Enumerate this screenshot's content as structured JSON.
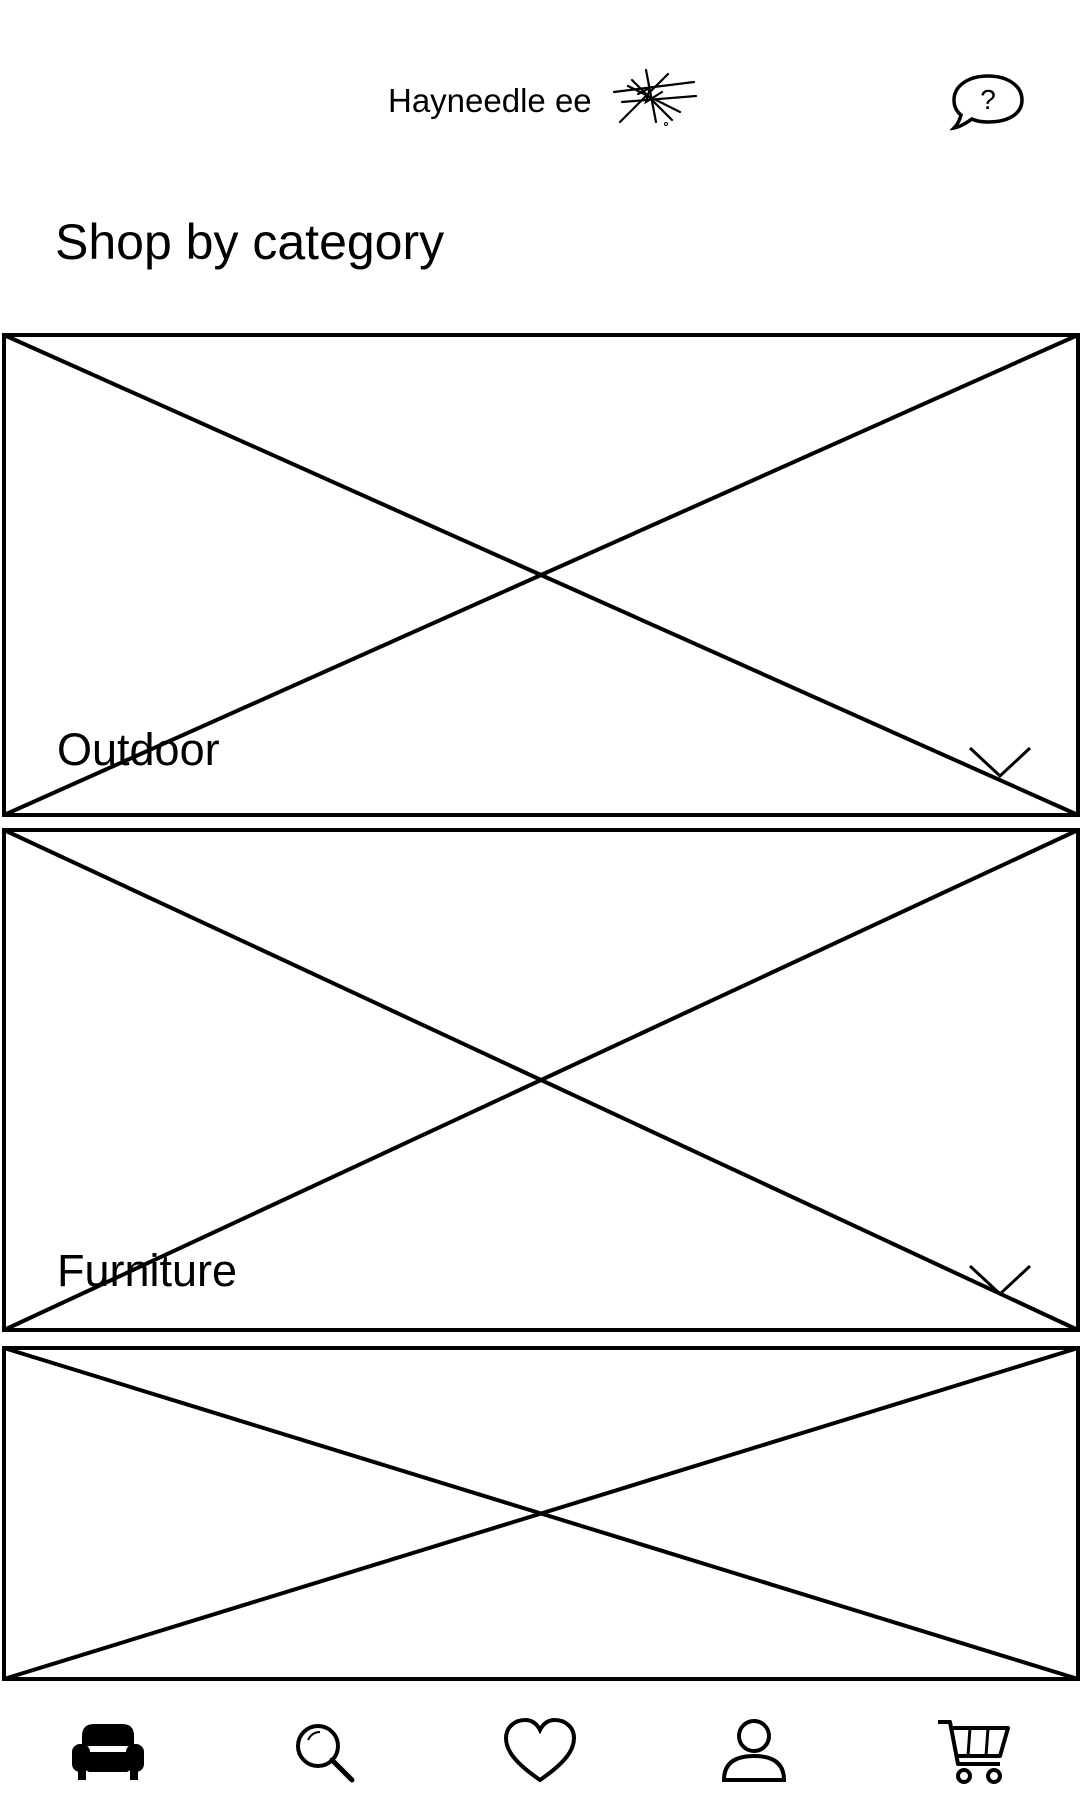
{
  "header": {
    "brand_name": "Hayneedle ee",
    "logo_icon": "scribble-logo-icon",
    "help_icon": "help-chat-icon",
    "help_glyph": "?"
  },
  "main": {
    "title": "Shop by category",
    "categories": [
      {
        "label": "Outdoor",
        "image": "image-placeholder",
        "expand_icon": "chevron-down-icon"
      },
      {
        "label": "Furniture",
        "image": "image-placeholder",
        "expand_icon": "chevron-down-icon"
      },
      {
        "label": "",
        "image": "image-placeholder"
      }
    ]
  },
  "bottom_nav": {
    "items": [
      {
        "icon": "sofa-icon",
        "active": true
      },
      {
        "icon": "search-icon",
        "active": false
      },
      {
        "icon": "heart-icon",
        "active": false
      },
      {
        "icon": "account-icon",
        "active": false
      },
      {
        "icon": "cart-icon",
        "active": false
      }
    ]
  },
  "colors": {
    "ink": "#000000",
    "background": "#ffffff"
  }
}
